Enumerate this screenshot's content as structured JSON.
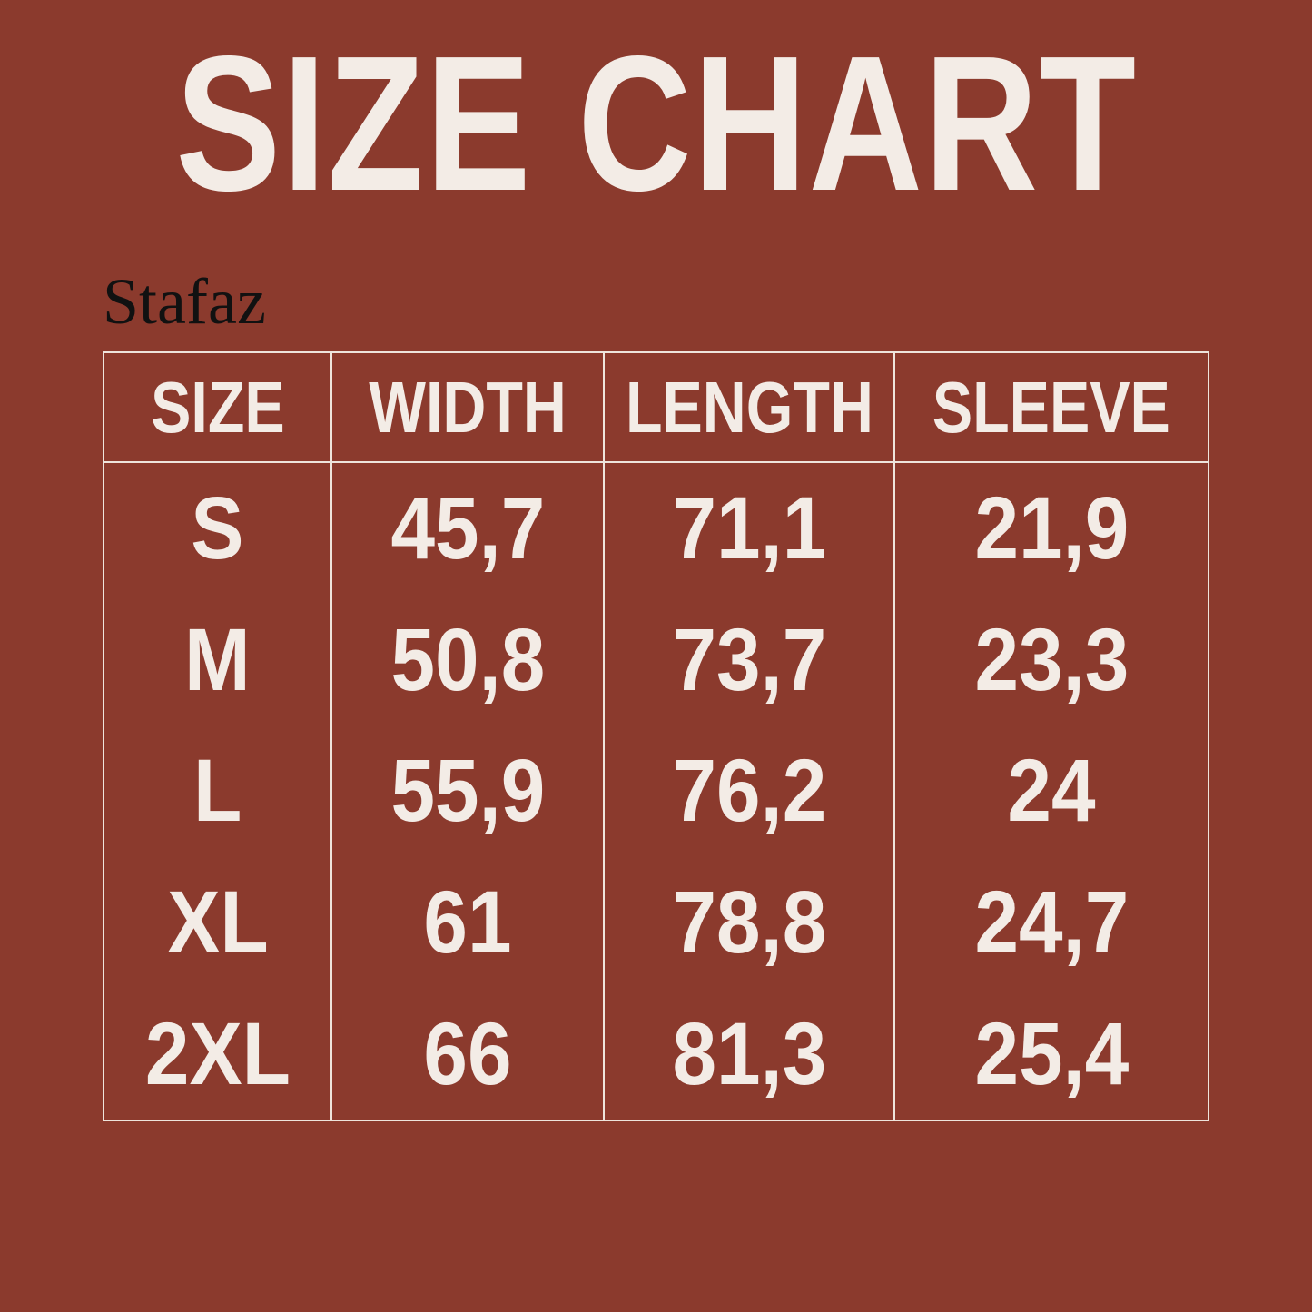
{
  "title": "SIZE CHART",
  "brand": "Stafaz",
  "colors": {
    "background": "#8b3a2d",
    "text": "#f3ece6",
    "brand": "#111111"
  },
  "table": {
    "headers": [
      "SIZE",
      "WIDTH",
      "LENGTH",
      "SLEEVE"
    ],
    "rows": [
      [
        "S",
        "45,7",
        "71,1",
        "21,9"
      ],
      [
        "M",
        "50,8",
        "73,7",
        "23,3"
      ],
      [
        "L",
        "55,9",
        "76,2",
        "24"
      ],
      [
        "XL",
        "61",
        "78,8",
        "24,7"
      ],
      [
        "2XL",
        "66",
        "81,3",
        "25,4"
      ]
    ]
  }
}
